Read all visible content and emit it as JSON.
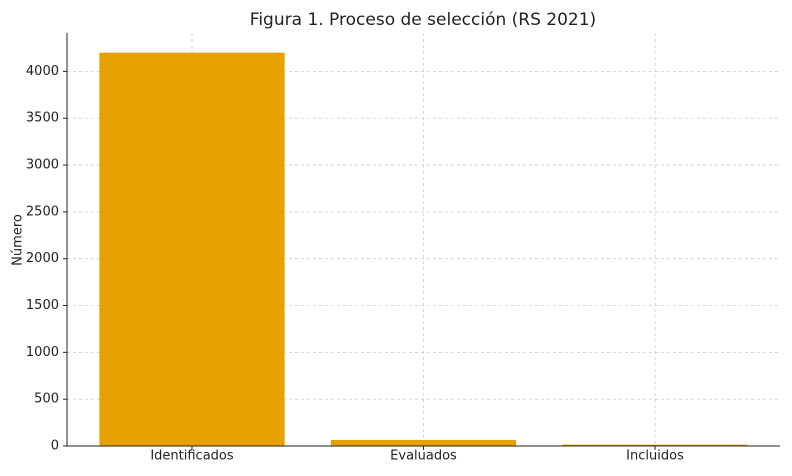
{
  "chart_data": {
    "type": "bar",
    "title": "Figura 1. Proceso de selección (RS 2021)",
    "y_label": "Número",
    "categories": [
      "Identificados",
      "Evaluados",
      "Incluidos"
    ],
    "values": [
      4200,
      65,
      15
    ],
    "color": "#e6a000",
    "ylim": [
      0,
      4410
    ],
    "yticks": [
      0,
      500,
      1000,
      1500,
      2000,
      2500,
      3000,
      3500,
      4000
    ],
    "grid": true
  }
}
